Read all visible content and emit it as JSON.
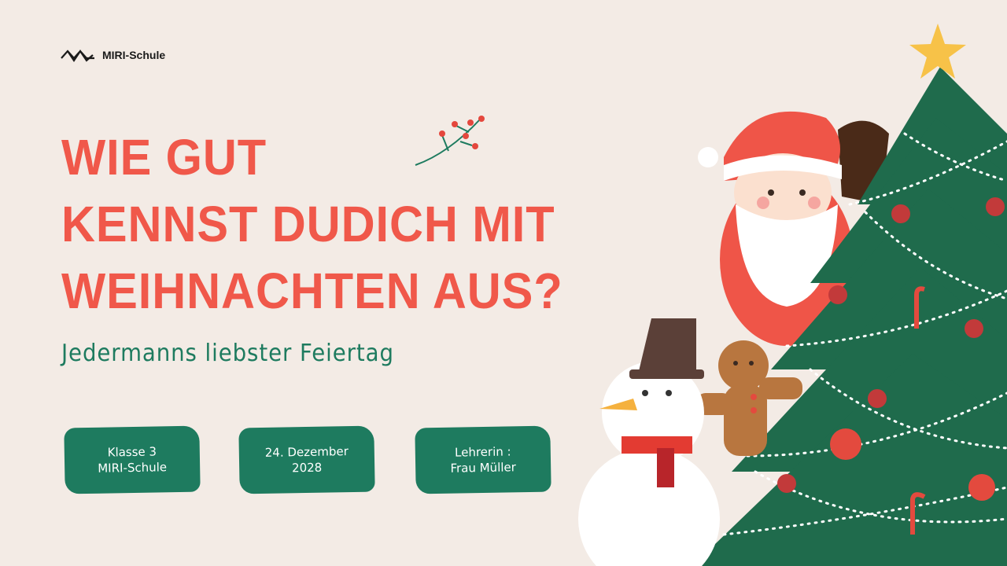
{
  "brand": {
    "name": "MIRI-Schule",
    "logo_icon": "mountain-wave-logo"
  },
  "title": {
    "lines": [
      "WIE GUT",
      "KENNST DUDICH MIT",
      "WEIHNACHTEN AUS?"
    ]
  },
  "subtitle": "Jedermanns liebster Feiertag",
  "badges": [
    {
      "line1": "Klasse 3",
      "line2": "MIRI-Schule"
    },
    {
      "line1": "24. Dezember",
      "line2": "2028"
    },
    {
      "line1": "Lehrerin :",
      "line2": "Frau Müller"
    }
  ],
  "colors": {
    "background": "#f3ebe5",
    "title": "#f0584a",
    "accent_green": "#1e7b5f",
    "tree": "#1f6b4c",
    "star": "#f7c248"
  },
  "illustrations": [
    "berry-branch-icon",
    "santa-claus",
    "christmas-tree",
    "snowman",
    "gingerbread-man",
    "star-icon"
  ]
}
